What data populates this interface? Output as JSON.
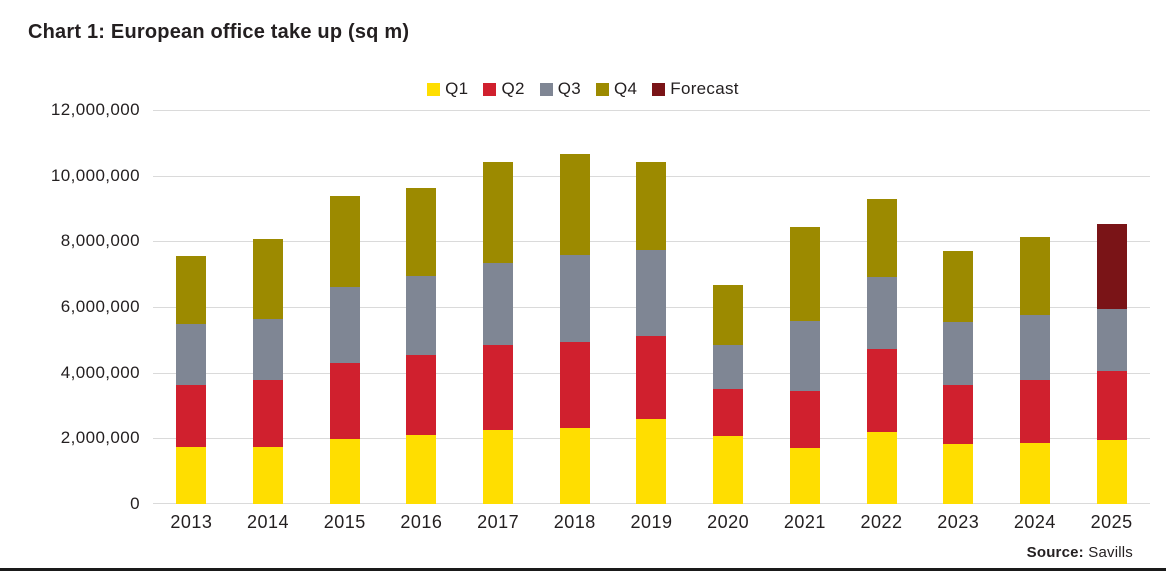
{
  "source": {
    "label": "Source:",
    "value": "Savills"
  },
  "colors": {
    "text": "#231f20",
    "gridline": "#dadada",
    "bottom_rule": "#1a1a1a"
  },
  "chart_data": {
    "type": "bar",
    "stacked": true,
    "title": "Chart 1: European office take up (sq m)",
    "xlabel": "",
    "ylabel": "",
    "categories": [
      "2013",
      "2014",
      "2015",
      "2016",
      "2017",
      "2018",
      "2019",
      "2020",
      "2021",
      "2022",
      "2023",
      "2024",
      "2025"
    ],
    "series": [
      {
        "name": "Q1",
        "color": "#ffde00",
        "values": [
          1730000,
          1750000,
          1980000,
          2110000,
          2260000,
          2320000,
          2590000,
          2080000,
          1720000,
          2190000,
          1840000,
          1860000,
          1940000
        ]
      },
      {
        "name": "Q2",
        "color": "#d0202e",
        "values": [
          1890000,
          2030000,
          2330000,
          2430000,
          2570000,
          2600000,
          2530000,
          1430000,
          1730000,
          2540000,
          1790000,
          1920000,
          2100000
        ]
      },
      {
        "name": "Q3",
        "color": "#7f8694",
        "values": [
          1870000,
          1860000,
          2310000,
          2390000,
          2520000,
          2650000,
          2620000,
          1320000,
          2110000,
          2170000,
          1900000,
          1980000,
          1900000
        ]
      },
      {
        "name": "Q4",
        "color": "#9c8a00",
        "values": [
          2070000,
          2430000,
          2760000,
          2700000,
          3070000,
          3080000,
          2680000,
          1830000,
          2870000,
          2380000,
          2190000,
          2370000,
          0
        ]
      },
      {
        "name": "Forecast",
        "color": "#7a1417",
        "values": [
          0,
          0,
          0,
          0,
          0,
          0,
          0,
          0,
          0,
          0,
          0,
          0,
          2600000
        ]
      }
    ],
    "ylim": [
      0,
      12000000
    ],
    "ytick_step": 2000000,
    "ytick_labels": [
      "0",
      "2,000,000",
      "4,000,000",
      "6,000,000",
      "8,000,000",
      "10,000,000",
      "12,000,000"
    ],
    "grid": "horizontal",
    "legend_position": "top-center"
  }
}
